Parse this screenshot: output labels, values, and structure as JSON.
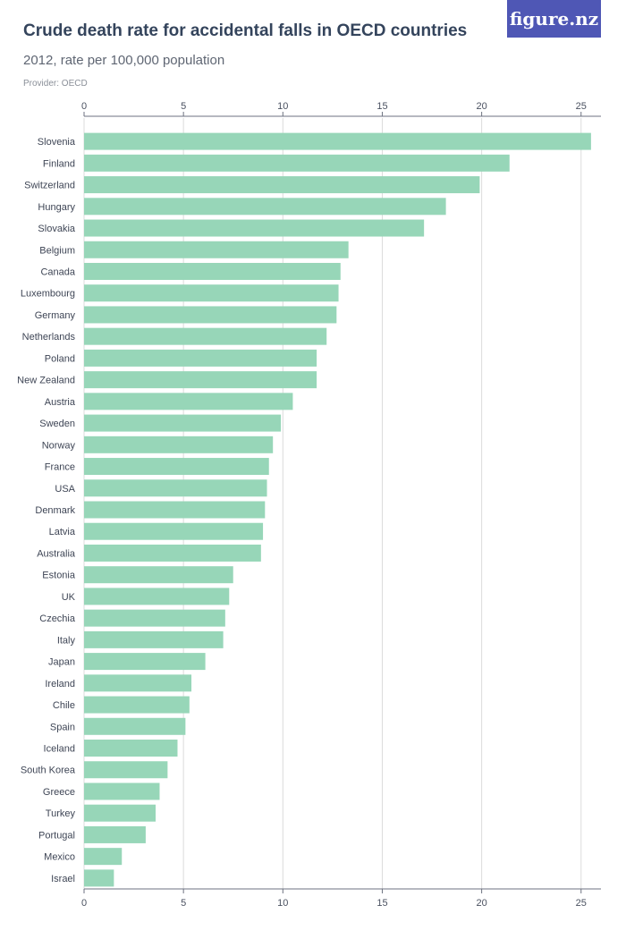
{
  "header": {
    "title": "Crude death rate for accidental falls in OECD countries",
    "subtitle": "2012, rate per 100,000 population",
    "provider": "Provider: OECD",
    "logo_text": "figure.nz"
  },
  "colors": {
    "bar": "#97d6b8",
    "grid": "#dcdcdc",
    "axis": "#6d7280",
    "logo_bg": "#4f57b5"
  },
  "chart_data": {
    "type": "bar",
    "orientation": "horizontal",
    "categories": [
      "Slovenia",
      "Finland",
      "Switzerland",
      "Hungary",
      "Slovakia",
      "Belgium",
      "Canada",
      "Luxembourg",
      "Germany",
      "Netherlands",
      "Poland",
      "New Zealand",
      "Austria",
      "Sweden",
      "Norway",
      "France",
      "USA",
      "Denmark",
      "Latvia",
      "Australia",
      "Estonia",
      "UK",
      "Czechia",
      "Italy",
      "Japan",
      "Ireland",
      "Chile",
      "Spain",
      "Iceland",
      "South Korea",
      "Greece",
      "Turkey",
      "Portugal",
      "Mexico",
      "Israel"
    ],
    "values": [
      25.5,
      21.4,
      19.9,
      18.2,
      17.1,
      13.3,
      12.9,
      12.8,
      12.7,
      12.2,
      11.7,
      11.7,
      10.5,
      9.9,
      9.5,
      9.3,
      9.2,
      9.1,
      9.0,
      8.9,
      7.5,
      7.3,
      7.1,
      7.0,
      6.1,
      5.4,
      5.3,
      5.1,
      4.7,
      4.2,
      3.8,
      3.6,
      3.1,
      1.9,
      1.5
    ],
    "xlim": [
      0,
      26
    ],
    "xticks": [
      0,
      5,
      10,
      15,
      20,
      25
    ],
    "xlabel": "",
    "ylabel": "",
    "grid": true,
    "axis_ticks_top_and_bottom": true
  }
}
